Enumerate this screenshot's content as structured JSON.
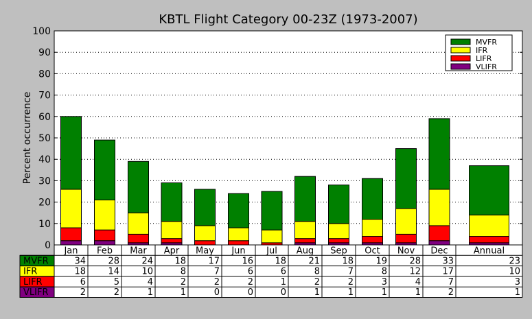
{
  "chart_data": {
    "type": "bar",
    "stacked": true,
    "title": "KBTL Flight Category 00-23Z (1973-2007)",
    "ylabel": "Percent occurrence",
    "xlabel": "",
    "ylim": [
      0,
      100
    ],
    "yticks": [
      0,
      10,
      20,
      30,
      40,
      50,
      60,
      70,
      80,
      90,
      100
    ],
    "grid": "horizontal-dotted",
    "legend_position": "top-right",
    "categories": [
      "Jan",
      "Feb",
      "Mar",
      "Apr",
      "May",
      "Jun",
      "Jul",
      "Aug",
      "Sep",
      "Oct",
      "Nov",
      "Dec",
      "Annual"
    ],
    "series": [
      {
        "name": "VLIFR",
        "color": "#800080",
        "values": [
          2,
          2,
          1,
          1,
          0,
          0,
          0,
          1,
          1,
          1,
          1,
          2,
          1
        ]
      },
      {
        "name": "LIFR",
        "color": "#ff0000",
        "values": [
          6,
          5,
          4,
          2,
          2,
          2,
          1,
          2,
          2,
          3,
          4,
          7,
          3
        ]
      },
      {
        "name": "IFR",
        "color": "#ffff00",
        "values": [
          18,
          14,
          10,
          8,
          7,
          6,
          6,
          8,
          7,
          8,
          12,
          17,
          10
        ]
      },
      {
        "name": "MVFR",
        "color": "#008000",
        "values": [
          34,
          28,
          24,
          18,
          17,
          16,
          18,
          21,
          18,
          19,
          28,
          33,
          23
        ]
      }
    ],
    "legend_order": [
      "MVFR",
      "IFR",
      "LIFR",
      "VLIFR"
    ],
    "table_row_order": [
      "MVFR",
      "IFR",
      "LIFR",
      "VLIFR"
    ]
  }
}
